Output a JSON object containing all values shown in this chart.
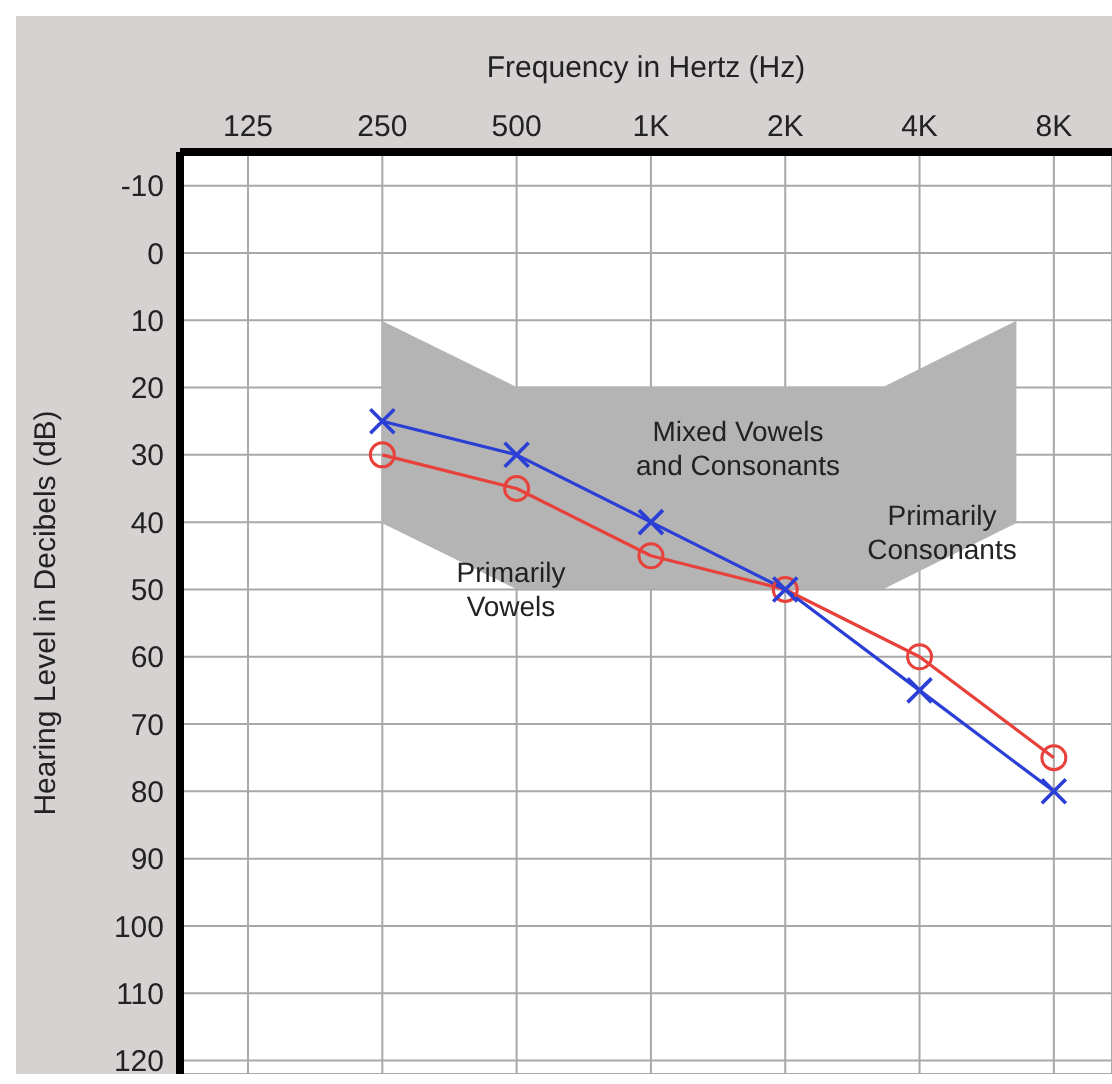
{
  "chart_data": {
    "type": "line",
    "xlabel": "Frequency in Hertz (Hz)",
    "ylabel": "Hearing Level in Decibels (dB)",
    "log": "x",
    "xlim": [
      88,
      10800
    ],
    "xticks": [
      125,
      250,
      500,
      {
        "value": 1000,
        "label": "1K"
      },
      {
        "value": 2000,
        "label": "2K"
      },
      {
        "value": 4000,
        "label": "4K"
      },
      {
        "value": 8000,
        "label": "8K"
      }
    ],
    "ylim": [
      122,
      -15
    ],
    "yticks": [
      -10,
      0,
      10,
      20,
      30,
      40,
      50,
      60,
      70,
      80,
      90,
      100,
      110,
      120
    ],
    "grid": true,
    "line_style": "solid",
    "series": [
      {
        "color": "#e8403a",
        "marker": "circle",
        "x": [
          250,
          500,
          1000,
          2000,
          4000,
          8000
        ],
        "values": [
          30,
          35,
          45,
          50,
          60,
          75
        ]
      },
      {
        "color": "#2b3fd6",
        "marker": "cross",
        "x": [
          250,
          500,
          1000,
          2000,
          4000,
          8000
        ],
        "values": [
          25,
          30,
          40,
          50,
          65,
          80
        ]
      }
    ],
    "annotations": [
      "Mixed Vowels\nand Consonants",
      "Primarily\nConsonants",
      "Primarily\nVowels"
    ]
  }
}
